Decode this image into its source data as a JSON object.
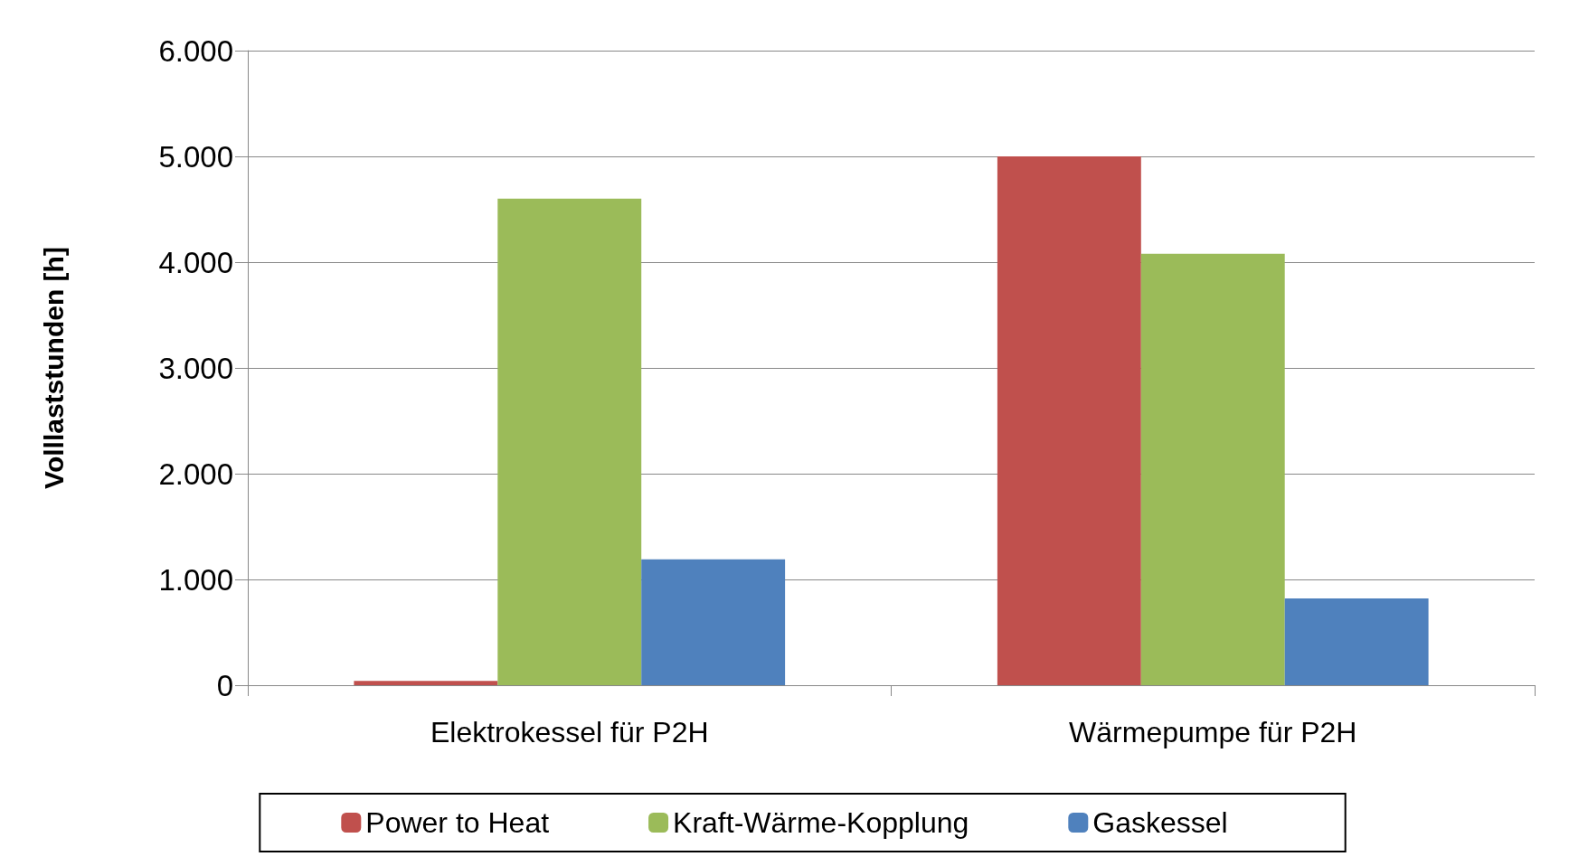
{
  "chart_data": {
    "type": "bar",
    "ylabel": "Volllaststunden [h]",
    "categories": [
      "Elektrokessel für P2H",
      "Wärmepumpe für P2H"
    ],
    "series": [
      {
        "name": "Power to Heat",
        "color": "#c0504d",
        "values": [
          40,
          5000
        ]
      },
      {
        "name": "Kraft-Wärme-Kopplung",
        "color": "#9bbb59",
        "values": [
          4600,
          4080
        ]
      },
      {
        "name": "Gaskessel",
        "color": "#4f81bd",
        "values": [
          1190,
          820
        ]
      }
    ],
    "ylim": [
      0,
      6000
    ],
    "yticks": [
      {
        "value": 0,
        "label": "0"
      },
      {
        "value": 1000,
        "label": "1.000"
      },
      {
        "value": 2000,
        "label": "2.000"
      },
      {
        "value": 3000,
        "label": "3.000"
      },
      {
        "value": 4000,
        "label": "4.000"
      },
      {
        "value": 5000,
        "label": "5.000"
      },
      {
        "value": 6000,
        "label": "6.000"
      }
    ],
    "grid": "y",
    "legend": "bottom"
  }
}
